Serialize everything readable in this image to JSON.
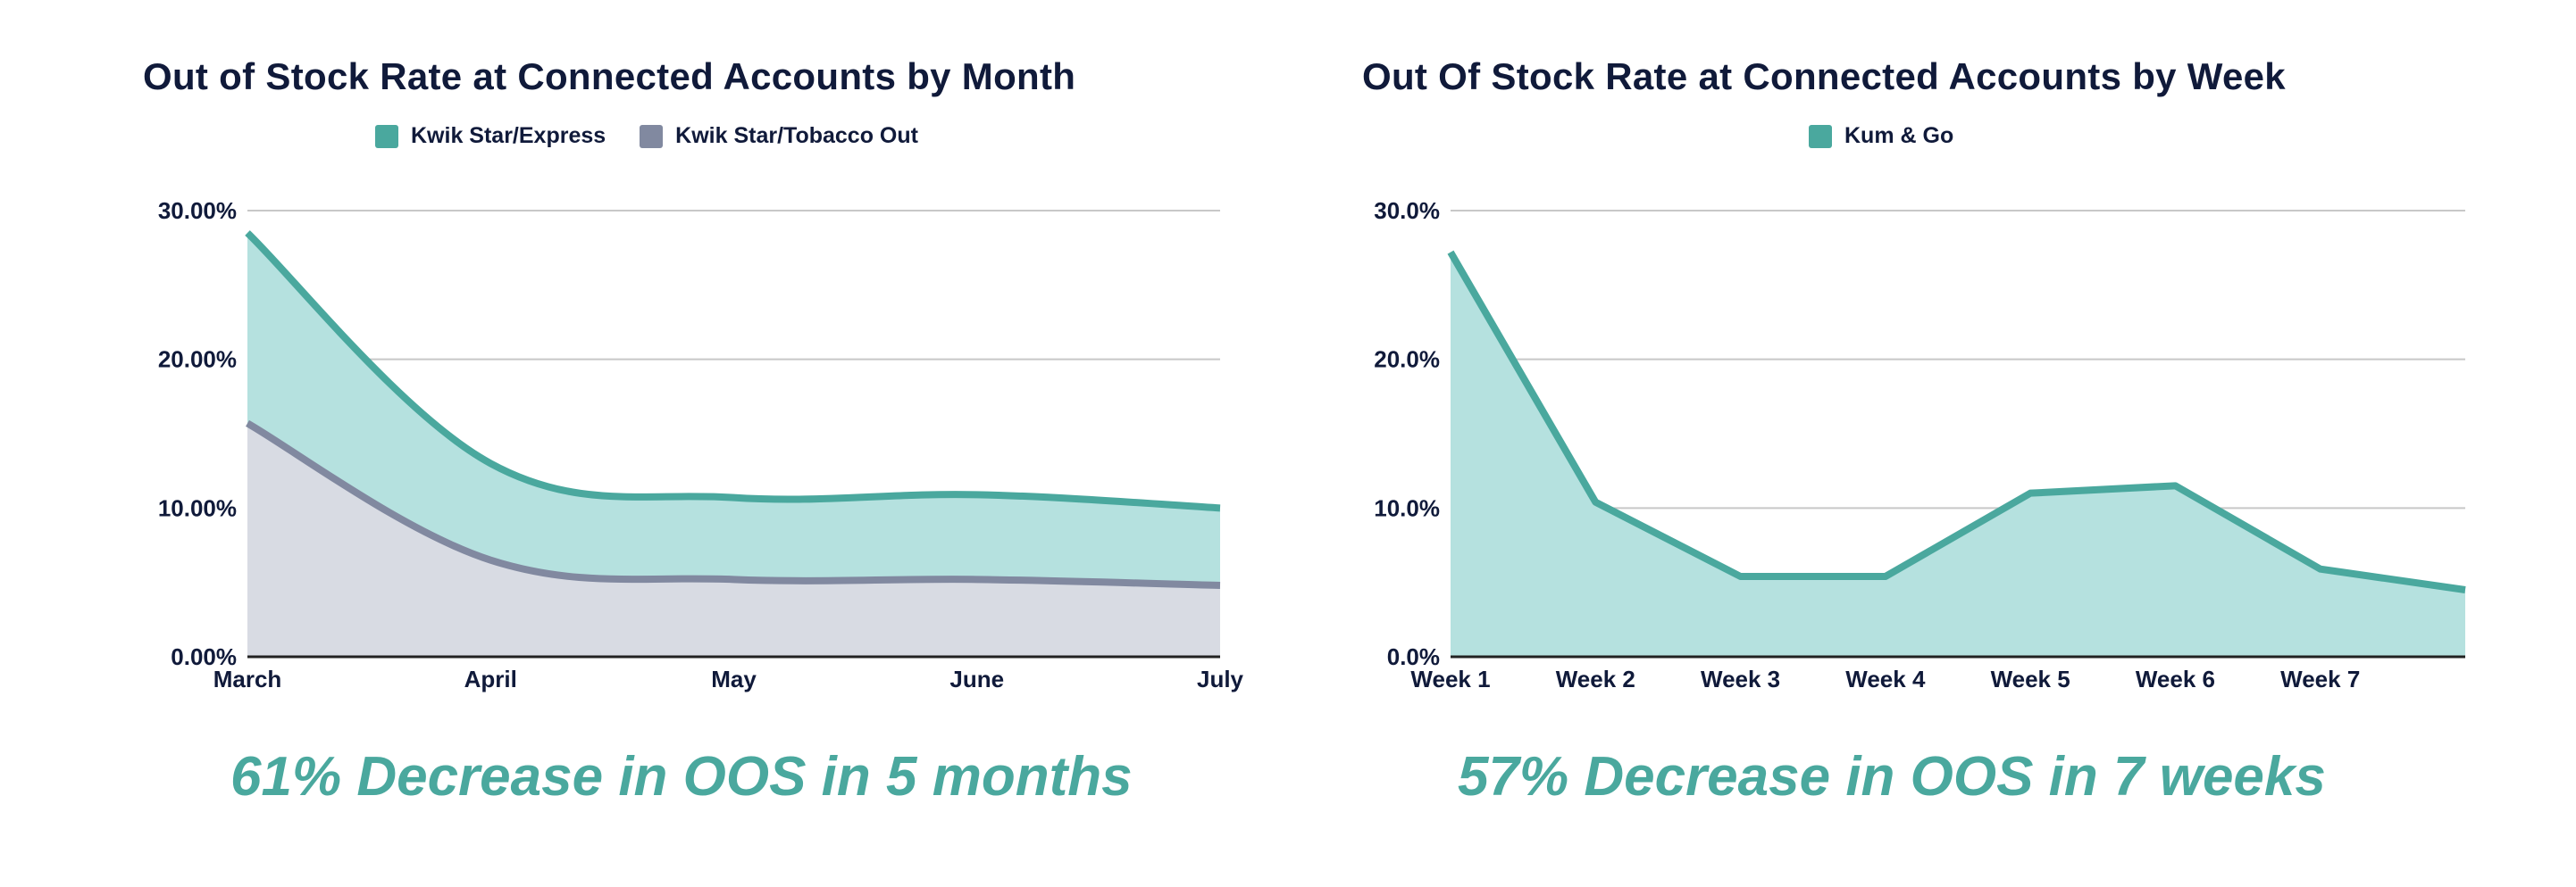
{
  "chart_data": [
    {
      "type": "area",
      "title": "Out of Stock Rate at Connected Accounts by Month",
      "categories": [
        "March",
        "April",
        "May",
        "June",
        "July"
      ],
      "series": [
        {
          "name": "Kwik Star/Express",
          "values": [
            28.5,
            13.0,
            10.7,
            10.9,
            10.0
          ],
          "color": "#4aa89e",
          "fill": "#b5e1df"
        },
        {
          "name": "Kwik Star/Tobacco Out",
          "values": [
            15.7,
            6.5,
            5.2,
            5.2,
            4.8
          ],
          "color": "#8189a0",
          "fill": "#d8dbe3"
        }
      ],
      "y_ticks": [
        "0.00%",
        "10.00%",
        "20.00%",
        "30.00%"
      ],
      "ylim": [
        0,
        30
      ],
      "smooth": true,
      "grid": true,
      "legend": "top",
      "caption": "61% Decrease in OOS in 5 months"
    },
    {
      "type": "area",
      "title": "Out Of Stock Rate at Connected Accounts by Week",
      "categories": [
        "Week 1",
        "Week 2",
        "Week 3",
        "Week 4",
        "Week 5",
        "Week 6",
        "Week 7",
        ""
      ],
      "series": [
        {
          "name": "Kum & Go",
          "values": [
            27.2,
            10.4,
            5.4,
            5.4,
            11.0,
            11.5,
            5.9,
            4.5
          ],
          "color": "#4aa89e",
          "fill": "#b5e1df"
        }
      ],
      "y_ticks": [
        "0.0%",
        "10.0%",
        "20.0%",
        "30.0%"
      ],
      "ylim": [
        0,
        30
      ],
      "smooth": false,
      "grid": true,
      "legend": "top",
      "caption": "57% Decrease in OOS in 7 weeks"
    }
  ]
}
